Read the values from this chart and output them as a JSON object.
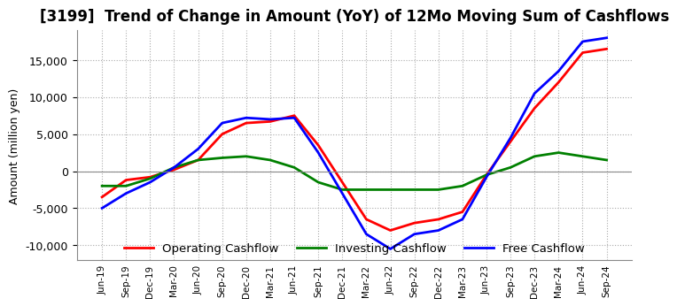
{
  "title": "[3199]  Trend of Change in Amount (YoY) of 12Mo Moving Sum of Cashflows",
  "ylabel": "Amount (million yen)",
  "ylim": [
    -12000,
    19000
  ],
  "yticks": [
    -10000,
    -5000,
    0,
    5000,
    10000,
    15000
  ],
  "x_labels": [
    "Jun-19",
    "Sep-19",
    "Dec-19",
    "Mar-20",
    "Jun-20",
    "Sep-20",
    "Dec-20",
    "Mar-21",
    "Jun-21",
    "Sep-21",
    "Dec-21",
    "Mar-22",
    "Jun-22",
    "Sep-22",
    "Dec-22",
    "Mar-23",
    "Jun-23",
    "Sep-23",
    "Dec-23",
    "Mar-24",
    "Jun-24",
    "Sep-24"
  ],
  "operating_cashflow": [
    -3500,
    -1200,
    -800,
    200,
    1500,
    5000,
    6500,
    6700,
    7500,
    3500,
    -1500,
    -6500,
    -8000,
    -7000,
    -6500,
    -5500,
    -500,
    4000,
    8500,
    12000,
    16000,
    16500
  ],
  "investing_cashflow": [
    -2000,
    -2000,
    -1000,
    500,
    1500,
    1800,
    2000,
    1500,
    500,
    -1500,
    -2500,
    -2500,
    -2500,
    -2500,
    -2500,
    -2000,
    -500,
    500,
    2000,
    2500,
    2000,
    1500
  ],
  "free_cashflow": [
    -5000,
    -3000,
    -1500,
    500,
    3000,
    6500,
    7200,
    7000,
    7200,
    2500,
    -3000,
    -8500,
    -10500,
    -8500,
    -8000,
    -6500,
    -800,
    4500,
    10500,
    13500,
    17500,
    18000
  ],
  "operating_color": "#ff0000",
  "investing_color": "#008000",
  "free_color": "#0000ff",
  "background_color": "#ffffff",
  "grid_color": "#aaaaaa",
  "title_fontsize": 12,
  "legend_labels": [
    "Operating Cashflow",
    "Investing Cashflow",
    "Free Cashflow"
  ]
}
